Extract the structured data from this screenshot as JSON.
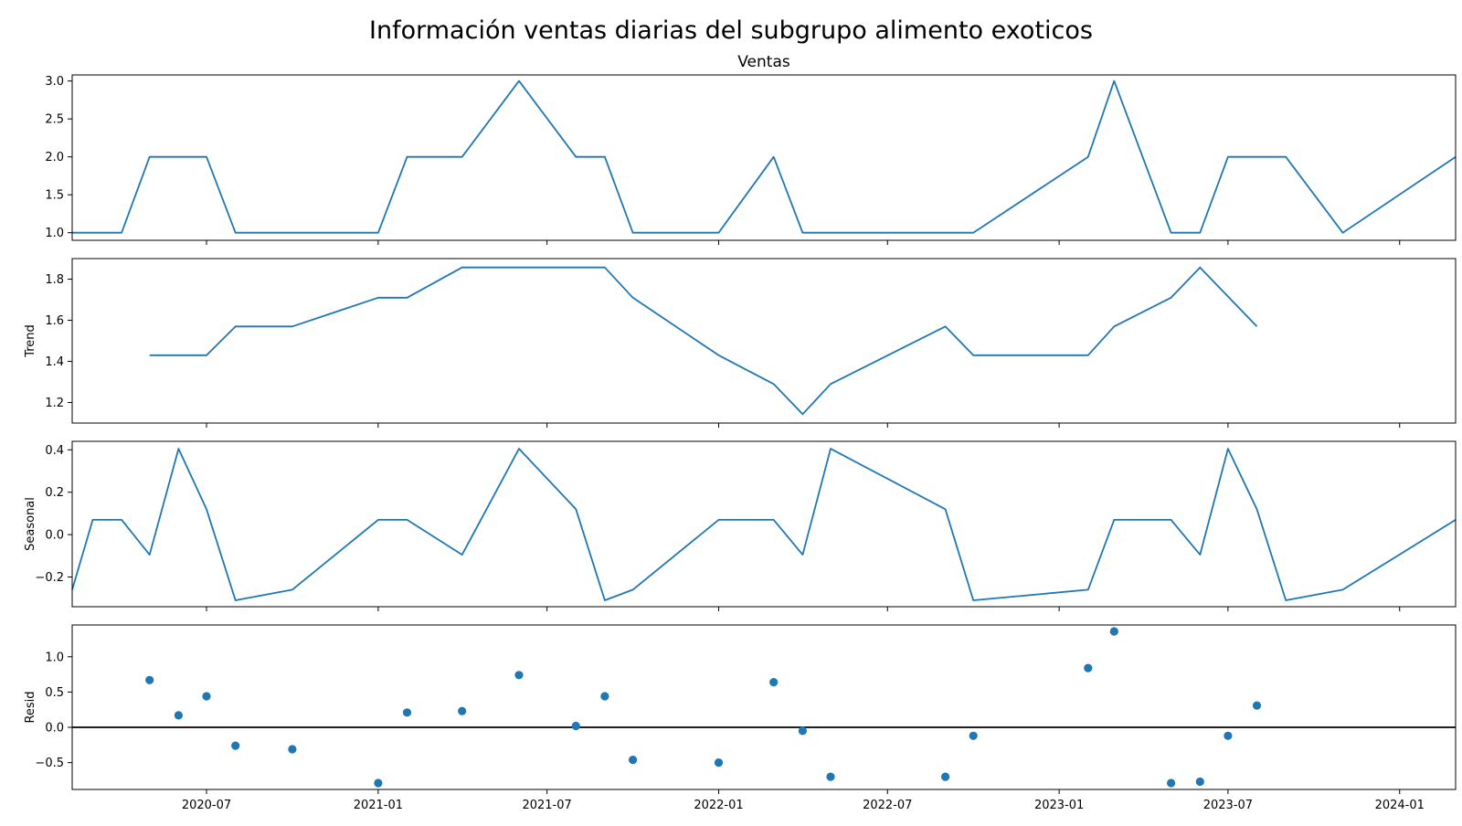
{
  "chart_data": {
    "type": "line",
    "title": "Información ventas diarias del subgrupo alimento exoticos",
    "x_tick_labels": [
      "2020-07",
      "2021-01",
      "2021-07",
      "2022-01",
      "2022-07",
      "2023-01",
      "2023-07",
      "2024-01"
    ],
    "x_tick_dates": [
      "2020-07-01",
      "2021-01-01",
      "2021-07-01",
      "2022-01-01",
      "2022-07-01",
      "2023-01-01",
      "2023-07-01",
      "2024-01-01"
    ],
    "xlim": [
      "2020-02-08",
      "2024-03-01"
    ],
    "panels": [
      {
        "id": "ventas",
        "title": "Ventas",
        "ylabel": "",
        "kind": "line",
        "ylim": [
          0.9,
          3.08
        ],
        "yticks": [
          1.0,
          1.5,
          2.0,
          2.5,
          3.0
        ],
        "ytick_labels": [
          "1.0",
          "1.5",
          "2.0",
          "2.5",
          "3.0"
        ],
        "x": [
          "2020-02-08",
          "2020-03-01",
          "2020-04-01",
          "2020-05-01",
          "2020-06-01",
          "2020-07-01",
          "2020-08-01",
          "2020-10-01",
          "2021-01-01",
          "2021-02-01",
          "2021-04-01",
          "2021-06-01",
          "2021-08-01",
          "2021-09-01",
          "2021-10-01",
          "2022-01-01",
          "2022-03-01",
          "2022-04-01",
          "2022-10-01",
          "2023-02-01",
          "2023-03-01",
          "2023-05-01",
          "2023-06-01",
          "2023-07-01",
          "2023-09-01",
          "2023-11-01",
          "2024-03-01"
        ],
        "values": [
          1,
          1,
          1,
          2,
          2,
          2,
          1,
          1,
          1,
          2,
          2,
          3,
          2,
          2,
          1,
          1,
          2,
          1,
          1,
          2,
          3,
          1,
          1,
          2,
          2,
          1,
          2
        ]
      },
      {
        "id": "trend",
        "title": "",
        "ylabel": "Trend",
        "kind": "line",
        "ylim": [
          1.1,
          1.9
        ],
        "yticks": [
          1.2,
          1.4,
          1.6,
          1.8
        ],
        "ytick_labels": [
          "1.2",
          "1.4",
          "1.6",
          "1.8"
        ],
        "x": [
          "2020-05-01",
          "2020-06-01",
          "2020-07-01",
          "2020-08-01",
          "2020-10-01",
          "2021-01-01",
          "2021-02-01",
          "2021-04-01",
          "2021-06-01",
          "2021-08-01",
          "2021-09-01",
          "2021-10-01",
          "2022-01-01",
          "2022-03-01",
          "2022-04-01",
          "2022-05-01",
          "2022-09-01",
          "2022-10-01",
          "2023-02-01",
          "2023-03-01",
          "2023-05-01",
          "2023-06-01",
          "2023-08-01"
        ],
        "values": [
          1.43,
          1.43,
          1.43,
          1.57,
          1.57,
          1.71,
          1.71,
          1.857,
          1.857,
          1.857,
          1.857,
          1.71,
          1.43,
          1.29,
          1.143,
          1.29,
          1.57,
          1.43,
          1.43,
          1.57,
          1.71,
          1.857,
          1.57
        ]
      },
      {
        "id": "seasonal",
        "title": "",
        "ylabel": "Seasonal",
        "kind": "line",
        "ylim": [
          -0.34,
          0.44
        ],
        "yticks": [
          -0.2,
          0.0,
          0.2,
          0.4
        ],
        "ytick_labels": [
          "−0.2",
          "0.0",
          "0.2",
          "0.4"
        ],
        "x": [
          "2020-02-08",
          "2020-03-01",
          "2020-04-01",
          "2020-05-01",
          "2020-06-01",
          "2020-07-01",
          "2020-08-01",
          "2020-10-01",
          "2021-01-01",
          "2021-02-01",
          "2021-04-01",
          "2021-06-01",
          "2021-08-01",
          "2021-09-01",
          "2021-10-01",
          "2022-01-01",
          "2022-03-01",
          "2022-04-01",
          "2022-05-01",
          "2022-09-01",
          "2022-10-01",
          "2023-02-01",
          "2023-03-01",
          "2023-05-01",
          "2023-06-01",
          "2023-07-01",
          "2023-08-01",
          "2023-09-01",
          "2023-11-01",
          "2024-03-01"
        ],
        "values": [
          -0.26,
          0.07,
          0.07,
          -0.095,
          0.405,
          0.12,
          -0.31,
          -0.26,
          0.07,
          0.07,
          -0.095,
          0.405,
          0.12,
          -0.31,
          -0.26,
          0.07,
          0.07,
          -0.095,
          0.405,
          0.12,
          -0.31,
          -0.26,
          0.07,
          0.07,
          -0.095,
          0.405,
          0.12,
          -0.31,
          -0.26,
          0.07
        ]
      },
      {
        "id": "resid",
        "title": "",
        "ylabel": "Resid",
        "kind": "scatter",
        "baseline": 0,
        "ylim": [
          -0.88,
          1.45
        ],
        "yticks": [
          -0.5,
          0.0,
          0.5,
          1.0
        ],
        "ytick_labels": [
          "−0.5",
          "0.0",
          "0.5",
          "1.0"
        ],
        "x": [
          "2020-05-01",
          "2020-06-01",
          "2020-07-01",
          "2020-08-01",
          "2020-10-01",
          "2021-01-01",
          "2021-02-01",
          "2021-04-01",
          "2021-06-01",
          "2021-08-01",
          "2021-09-01",
          "2021-10-01",
          "2022-01-01",
          "2022-03-01",
          "2022-04-01",
          "2022-05-01",
          "2022-09-01",
          "2022-10-01",
          "2023-02-01",
          "2023-03-01",
          "2023-05-01",
          "2023-06-01",
          "2023-07-01",
          "2023-08-01"
        ],
        "values": [
          0.67,
          0.17,
          0.44,
          -0.26,
          -0.31,
          -0.79,
          0.21,
          0.23,
          0.74,
          0.02,
          0.44,
          -0.46,
          -0.5,
          0.64,
          -0.05,
          -0.7,
          -0.7,
          -0.12,
          0.84,
          1.36,
          -0.79,
          -0.77,
          -0.12,
          0.31
        ]
      }
    ],
    "color": "#1f77b4",
    "grid": false,
    "legend": false
  }
}
